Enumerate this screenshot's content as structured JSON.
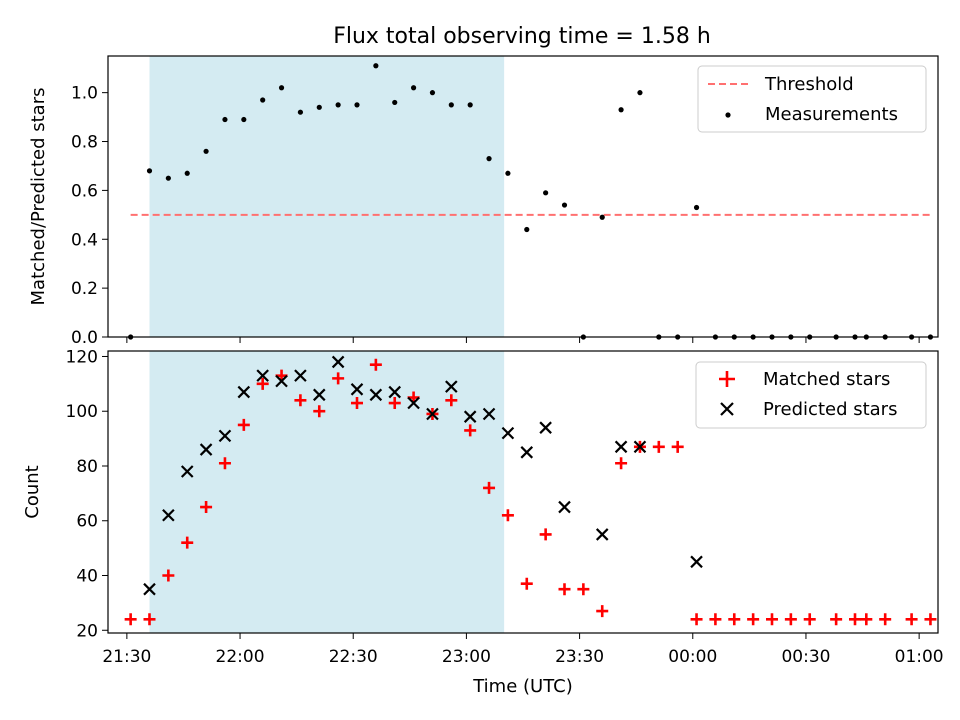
{
  "chart_data": [
    {
      "type": "scatter",
      "title": "Flux total observing time = 1.58 h",
      "xlabel": "",
      "ylabel": "Matched/Predicted stars",
      "ylim": [
        0,
        1.15
      ],
      "xlim": [
        "21:25",
        "01:05"
      ],
      "yticks": [
        0.0,
        0.2,
        0.4,
        0.6,
        0.8,
        1.0
      ],
      "ytick_labels": [
        "0.0",
        "0.2",
        "0.4",
        "0.6",
        "0.8",
        "1.0"
      ],
      "shaded_interval": {
        "start": "21:36",
        "end": "23:10",
        "color": "#add8e6"
      },
      "legend_position": "upper right",
      "series": [
        {
          "name": "Threshold",
          "style": "dashed-line",
          "color": "#ff7070",
          "points": [
            [
              "21:31",
              0.5
            ],
            [
              "01:03",
              0.5
            ]
          ]
        },
        {
          "name": "Measurements",
          "style": "dot",
          "color": "#000000",
          "points": [
            [
              "21:31",
              0.0
            ],
            [
              "21:36",
              0.68
            ],
            [
              "21:41",
              0.65
            ],
            [
              "21:46",
              0.67
            ],
            [
              "21:51",
              0.76
            ],
            [
              "21:56",
              0.89
            ],
            [
              "22:01",
              0.89
            ],
            [
              "22:06",
              0.97
            ],
            [
              "22:11",
              1.02
            ],
            [
              "22:16",
              0.92
            ],
            [
              "22:21",
              0.94
            ],
            [
              "22:26",
              0.95
            ],
            [
              "22:31",
              0.95
            ],
            [
              "22:36",
              1.11
            ],
            [
              "22:41",
              0.96
            ],
            [
              "22:46",
              1.02
            ],
            [
              "22:51",
              1.0
            ],
            [
              "22:56",
              0.95
            ],
            [
              "23:01",
              0.95
            ],
            [
              "23:06",
              0.73
            ],
            [
              "23:11",
              0.67
            ],
            [
              "23:16",
              0.44
            ],
            [
              "23:21",
              0.59
            ],
            [
              "23:26",
              0.54
            ],
            [
              "23:31",
              0.0
            ],
            [
              "23:36",
              0.49
            ],
            [
              "23:41",
              0.93
            ],
            [
              "23:46",
              1.0
            ],
            [
              "23:51",
              0.0
            ],
            [
              "23:56",
              0.0
            ],
            [
              "00:01",
              0.53
            ],
            [
              "00:06",
              0.0
            ],
            [
              "00:11",
              0.0
            ],
            [
              "00:16",
              0.0
            ],
            [
              "00:21",
              0.0
            ],
            [
              "00:26",
              0.0
            ],
            [
              "00:31",
              0.0
            ],
            [
              "00:38",
              0.0
            ],
            [
              "00:43",
              0.0
            ],
            [
              "00:46",
              0.0
            ],
            [
              "00:51",
              0.0
            ],
            [
              "00:58",
              0.0
            ],
            [
              "01:03",
              0.0
            ]
          ]
        }
      ]
    },
    {
      "type": "scatter",
      "title": "",
      "xlabel": "Time (UTC)",
      "ylabel": "Count",
      "ylim": [
        19,
        122
      ],
      "xlim": [
        "21:25",
        "01:05"
      ],
      "xticks": [
        "21:30",
        "22:00",
        "22:30",
        "23:00",
        "23:30",
        "00:00",
        "00:30",
        "01:00"
      ],
      "yticks": [
        20,
        40,
        60,
        80,
        100,
        120
      ],
      "ytick_labels": [
        "20",
        "40",
        "60",
        "80",
        "100",
        "120"
      ],
      "shaded_interval": {
        "start": "21:36",
        "end": "23:10",
        "color": "#add8e6"
      },
      "legend_position": "upper right",
      "series": [
        {
          "name": "Matched stars",
          "marker": "plus",
          "color": "#ff0000",
          "points": [
            [
              "21:31",
              24
            ],
            [
              "21:36",
              24
            ],
            [
              "21:41",
              40
            ],
            [
              "21:46",
              52
            ],
            [
              "21:51",
              65
            ],
            [
              "21:56",
              81
            ],
            [
              "22:01",
              95
            ],
            [
              "22:06",
              110
            ],
            [
              "22:11",
              113
            ],
            [
              "22:16",
              104
            ],
            [
              "22:21",
              100
            ],
            [
              "22:26",
              112
            ],
            [
              "22:31",
              103
            ],
            [
              "22:36",
              117
            ],
            [
              "22:41",
              103
            ],
            [
              "22:46",
              105
            ],
            [
              "22:51",
              99
            ],
            [
              "22:56",
              104
            ],
            [
              "23:01",
              93
            ],
            [
              "23:06",
              72
            ],
            [
              "23:11",
              62
            ],
            [
              "23:16",
              37
            ],
            [
              "23:21",
              55
            ],
            [
              "23:26",
              35
            ],
            [
              "23:31",
              35
            ],
            [
              "23:36",
              27
            ],
            [
              "23:41",
              81
            ],
            [
              "23:46",
              87
            ],
            [
              "23:51",
              87
            ],
            [
              "23:56",
              87
            ],
            [
              "00:01",
              24
            ],
            [
              "00:06",
              24
            ],
            [
              "00:11",
              24
            ],
            [
              "00:16",
              24
            ],
            [
              "00:21",
              24
            ],
            [
              "00:26",
              24
            ],
            [
              "00:31",
              24
            ],
            [
              "00:38",
              24
            ],
            [
              "00:43",
              24
            ],
            [
              "00:46",
              24
            ],
            [
              "00:51",
              24
            ],
            [
              "00:58",
              24
            ],
            [
              "01:03",
              24
            ]
          ]
        },
        {
          "name": "Predicted stars",
          "marker": "x",
          "color": "#000000",
          "points": [
            [
              "21:36",
              35
            ],
            [
              "21:41",
              62
            ],
            [
              "21:46",
              78
            ],
            [
              "21:51",
              86
            ],
            [
              "21:56",
              91
            ],
            [
              "22:01",
              107
            ],
            [
              "22:06",
              113
            ],
            [
              "22:11",
              111
            ],
            [
              "22:16",
              113
            ],
            [
              "22:21",
              106
            ],
            [
              "22:26",
              118
            ],
            [
              "22:31",
              108
            ],
            [
              "22:36",
              106
            ],
            [
              "22:41",
              107
            ],
            [
              "22:46",
              103
            ],
            [
              "22:51",
              99
            ],
            [
              "22:56",
              109
            ],
            [
              "23:01",
              98
            ],
            [
              "23:06",
              99
            ],
            [
              "23:11",
              92
            ],
            [
              "23:16",
              85
            ],
            [
              "23:21",
              94
            ],
            [
              "23:26",
              65
            ],
            [
              "23:36",
              55
            ],
            [
              "23:41",
              87
            ],
            [
              "23:46",
              87
            ],
            [
              "00:01",
              45
            ]
          ]
        }
      ]
    }
  ]
}
